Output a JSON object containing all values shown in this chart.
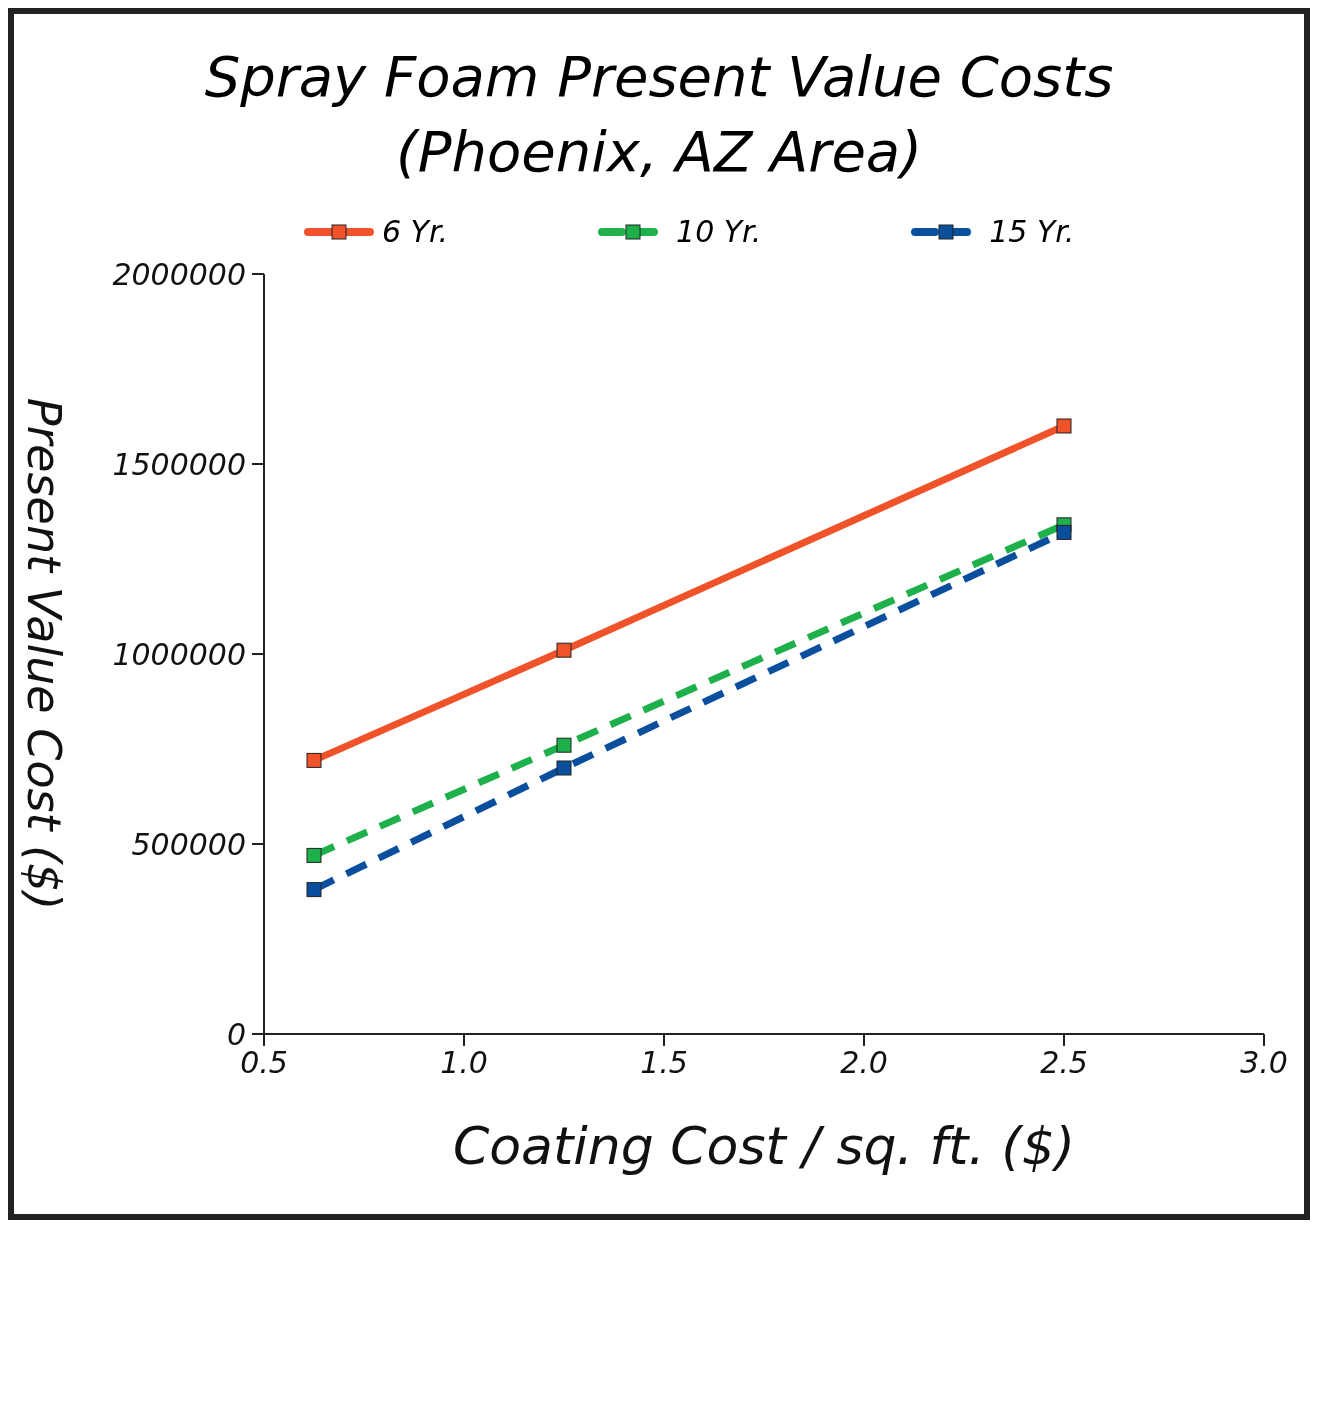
{
  "chart_data": {
    "type": "line",
    "title": "Spray Foam Present Value Costs",
    "subtitle": "(Phoenix, AZ Area)",
    "xlabel": "Coating Cost / sq. ft. ($)",
    "ylabel": "Present Value Cost ($)",
    "xlim": [
      0.5,
      3.0
    ],
    "xticks": [
      0.5,
      {
        "value": 1,
        "label": "1.0"
      },
      1.5,
      {
        "value": 2,
        "label": "2.0"
      },
      2.5,
      {
        "value": 3,
        "label": "3.0"
      }
    ],
    "ylim": [
      0,
      2000000
    ],
    "yticks": [
      0,
      500000,
      1000000,
      1500000,
      2000000
    ],
    "x": [
      0.625,
      1.25,
      2.5
    ],
    "series": [
      {
        "name": "6 Yr.",
        "color": "#f0522a",
        "values": [
          720000,
          1010000,
          1600000
        ],
        "line_style": "solid"
      },
      {
        "name": "10 Yr.",
        "color": "#1db04b",
        "values": [
          470000,
          760000,
          1340000
        ],
        "line_style": "dashed"
      },
      {
        "name": "15 Yr.",
        "color": "#0a4f9e",
        "values": [
          380000,
          700000,
          1320000
        ],
        "line_style": "dashed"
      }
    ],
    "marker": "square",
    "legend": "top",
    "grid": false
  }
}
